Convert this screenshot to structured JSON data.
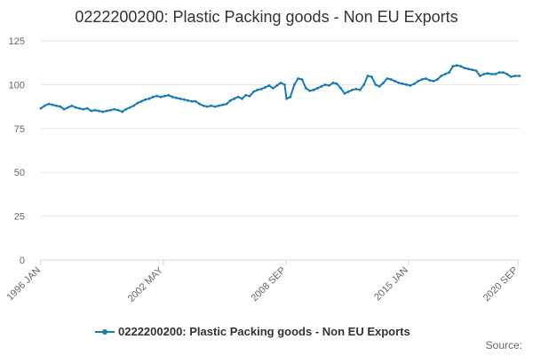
{
  "chart_data": {
    "type": "line",
    "title": "0222200200: Plastic Packing goods - Non EU Exports",
    "xlabel": "",
    "ylabel": "",
    "source_label": "Source:",
    "xlim": [
      1996.0,
      2020.75
    ],
    "ylim": [
      0,
      125
    ],
    "y_ticks": [
      0,
      25,
      50,
      75,
      100,
      125
    ],
    "x_ticks": [
      {
        "value": 1996.0,
        "label": "1996 JAN"
      },
      {
        "value": 2002.33,
        "label": "2002 MAY"
      },
      {
        "value": 2008.67,
        "label": "2008 SEP"
      },
      {
        "value": 2015.0,
        "label": "2015 JAN"
      },
      {
        "value": 2020.67,
        "label": "2020 SEP"
      }
    ],
    "grid": true,
    "legend": "bottom",
    "series": [
      {
        "name": "0222200200: Plastic Packing goods - Non EU Exports",
        "color": "#1a7ab5",
        "points": [
          [
            1996.0,
            86.5
          ],
          [
            1996.2,
            88.0
          ],
          [
            1996.4,
            89.0
          ],
          [
            1996.6,
            88.5
          ],
          [
            1996.8,
            88.0
          ],
          [
            1997.0,
            87.5
          ],
          [
            1997.2,
            86.0
          ],
          [
            1997.4,
            87.0
          ],
          [
            1997.6,
            88.0
          ],
          [
            1997.8,
            87.0
          ],
          [
            1998.0,
            86.5
          ],
          [
            1998.2,
            86.0
          ],
          [
            1998.4,
            86.5
          ],
          [
            1998.6,
            85.0
          ],
          [
            1998.8,
            85.5
          ],
          [
            1999.0,
            85.0
          ],
          [
            1999.2,
            84.5
          ],
          [
            1999.4,
            85.0
          ],
          [
            1999.6,
            85.5
          ],
          [
            1999.8,
            86.0
          ],
          [
            2000.0,
            85.5
          ],
          [
            2000.2,
            84.5
          ],
          [
            2000.4,
            86.0
          ],
          [
            2000.6,
            87.0
          ],
          [
            2000.8,
            88.0
          ],
          [
            2001.0,
            89.5
          ],
          [
            2001.2,
            90.5
          ],
          [
            2001.4,
            91.5
          ],
          [
            2001.6,
            92.0
          ],
          [
            2001.8,
            93.0
          ],
          [
            2002.0,
            93.5
          ],
          [
            2002.2,
            93.0
          ],
          [
            2002.4,
            93.5
          ],
          [
            2002.6,
            94.0
          ],
          [
            2002.8,
            93.0
          ],
          [
            2003.0,
            92.5
          ],
          [
            2003.2,
            92.0
          ],
          [
            2003.4,
            91.5
          ],
          [
            2003.6,
            91.0
          ],
          [
            2003.8,
            90.5
          ],
          [
            2004.0,
            90.5
          ],
          [
            2004.2,
            89.0
          ],
          [
            2004.4,
            88.0
          ],
          [
            2004.6,
            87.5
          ],
          [
            2004.8,
            88.0
          ],
          [
            2005.0,
            87.5
          ],
          [
            2005.2,
            88.0
          ],
          [
            2005.4,
            88.5
          ],
          [
            2005.6,
            89.0
          ],
          [
            2005.8,
            91.0
          ],
          [
            2006.0,
            92.0
          ],
          [
            2006.2,
            93.0
          ],
          [
            2006.4,
            92.0
          ],
          [
            2006.6,
            94.0
          ],
          [
            2006.8,
            93.5
          ],
          [
            2007.0,
            96.0
          ],
          [
            2007.2,
            97.0
          ],
          [
            2007.4,
            97.5
          ],
          [
            2007.6,
            98.5
          ],
          [
            2007.8,
            99.5
          ],
          [
            2008.0,
            98.0
          ],
          [
            2008.2,
            99.5
          ],
          [
            2008.4,
            101.0
          ],
          [
            2008.6,
            100.0
          ],
          [
            2008.7,
            92.0
          ],
          [
            2008.9,
            93.0
          ],
          [
            2009.1,
            100.0
          ],
          [
            2009.3,
            103.5
          ],
          [
            2009.5,
            103.0
          ],
          [
            2009.7,
            98.0
          ],
          [
            2009.9,
            96.5
          ],
          [
            2010.1,
            97.0
          ],
          [
            2010.3,
            98.0
          ],
          [
            2010.5,
            99.0
          ],
          [
            2010.7,
            100.0
          ],
          [
            2010.9,
            99.5
          ],
          [
            2011.1,
            101.0
          ],
          [
            2011.3,
            100.5
          ],
          [
            2011.5,
            98.0
          ],
          [
            2011.7,
            95.0
          ],
          [
            2011.9,
            96.0
          ],
          [
            2012.1,
            97.0
          ],
          [
            2012.3,
            97.5
          ],
          [
            2012.5,
            97.0
          ],
          [
            2012.7,
            100.0
          ],
          [
            2012.9,
            105.0
          ],
          [
            2013.1,
            104.5
          ],
          [
            2013.3,
            100.0
          ],
          [
            2013.5,
            99.0
          ],
          [
            2013.7,
            101.0
          ],
          [
            2013.9,
            103.5
          ],
          [
            2014.1,
            103.0
          ],
          [
            2014.3,
            102.0
          ],
          [
            2014.5,
            101.0
          ],
          [
            2014.7,
            100.5
          ],
          [
            2014.9,
            100.0
          ],
          [
            2015.1,
            99.5
          ],
          [
            2015.3,
            100.5
          ],
          [
            2015.5,
            102.0
          ],
          [
            2015.7,
            103.0
          ],
          [
            2015.9,
            103.5
          ],
          [
            2016.1,
            102.5
          ],
          [
            2016.3,
            102.0
          ],
          [
            2016.5,
            103.0
          ],
          [
            2016.7,
            105.0
          ],
          [
            2016.9,
            106.0
          ],
          [
            2017.1,
            107.0
          ],
          [
            2017.3,
            110.5
          ],
          [
            2017.5,
            111.0
          ],
          [
            2017.7,
            110.5
          ],
          [
            2017.9,
            109.5
          ],
          [
            2018.1,
            109.0
          ],
          [
            2018.3,
            108.5
          ],
          [
            2018.5,
            108.0
          ],
          [
            2018.7,
            105.0
          ],
          [
            2018.9,
            106.0
          ],
          [
            2019.1,
            106.5
          ],
          [
            2019.3,
            106.0
          ],
          [
            2019.5,
            106.0
          ],
          [
            2019.7,
            107.0
          ],
          [
            2019.9,
            107.0
          ],
          [
            2020.1,
            106.0
          ],
          [
            2020.3,
            104.5
          ],
          [
            2020.5,
            105.0
          ],
          [
            2020.75,
            105.0
          ]
        ]
      }
    ]
  }
}
